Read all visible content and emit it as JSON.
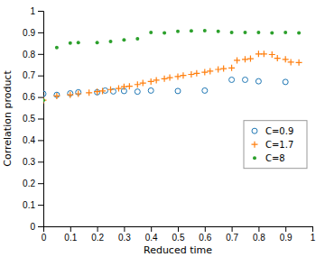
{
  "chart_data": {
    "type": "scatter",
    "xlabel": "Reduced time",
    "ylabel": "Correlation product",
    "xlim": [
      0,
      1
    ],
    "ylim": [
      0,
      1
    ],
    "xticks": [
      0,
      0.1,
      0.2,
      0.3,
      0.4,
      0.5,
      0.6,
      0.7,
      0.8,
      0.9,
      1
    ],
    "yticks": [
      0,
      0.1,
      0.2,
      0.3,
      0.4,
      0.5,
      0.6,
      0.7,
      0.8,
      0.9,
      1
    ],
    "grid": false,
    "legend": "right",
    "series": [
      {
        "name": "C=0.9",
        "marker": "circle",
        "x": [
          0.0,
          0.05,
          0.1,
          0.13,
          0.2,
          0.23,
          0.26,
          0.3,
          0.35,
          0.4,
          0.5,
          0.6,
          0.7,
          0.75,
          0.8,
          0.9
        ],
        "values": [
          0.615,
          0.61,
          0.617,
          0.622,
          0.622,
          0.63,
          0.626,
          0.628,
          0.625,
          0.63,
          0.628,
          0.63,
          0.68,
          0.68,
          0.673,
          0.67
        ]
      },
      {
        "name": "C=1.7",
        "marker": "plus",
        "x": [
          0.0,
          0.05,
          0.1,
          0.13,
          0.17,
          0.2,
          0.22,
          0.25,
          0.28,
          0.3,
          0.32,
          0.35,
          0.37,
          0.4,
          0.42,
          0.45,
          0.47,
          0.5,
          0.52,
          0.55,
          0.57,
          0.6,
          0.62,
          0.65,
          0.67,
          0.7,
          0.72,
          0.75,
          0.77,
          0.8,
          0.82,
          0.85,
          0.87,
          0.9,
          0.92,
          0.95
        ],
        "values": [
          0.585,
          0.605,
          0.61,
          0.615,
          0.62,
          0.625,
          0.628,
          0.635,
          0.64,
          0.648,
          0.65,
          0.658,
          0.665,
          0.672,
          0.678,
          0.685,
          0.69,
          0.695,
          0.7,
          0.705,
          0.71,
          0.715,
          0.72,
          0.728,
          0.732,
          0.735,
          0.77,
          0.775,
          0.778,
          0.8,
          0.8,
          0.797,
          0.78,
          0.775,
          0.762,
          0.76
        ]
      },
      {
        "name": "C=8",
        "marker": "dot",
        "x": [
          0.0,
          0.05,
          0.1,
          0.13,
          0.2,
          0.25,
          0.3,
          0.35,
          0.4,
          0.45,
          0.5,
          0.55,
          0.6,
          0.65,
          0.7,
          0.75,
          0.8,
          0.85,
          0.9,
          0.95
        ],
        "values": [
          0.585,
          0.83,
          0.85,
          0.852,
          0.852,
          0.858,
          0.865,
          0.87,
          0.9,
          0.897,
          0.905,
          0.907,
          0.908,
          0.905,
          0.9,
          0.9,
          0.9,
          0.897,
          0.9,
          0.897
        ]
      }
    ]
  }
}
